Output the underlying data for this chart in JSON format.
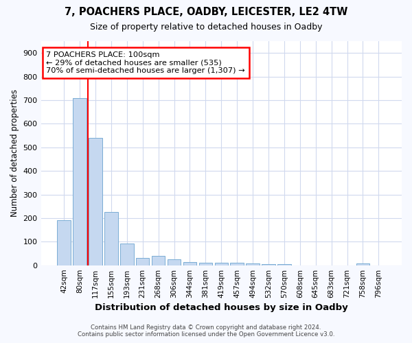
{
  "title": "7, POACHERS PLACE, OADBY, LEICESTER, LE2 4TW",
  "subtitle": "Size of property relative to detached houses in Oadby",
  "xlabel": "Distribution of detached houses by size in Oadby",
  "ylabel": "Number of detached properties",
  "categories": [
    "42sqm",
    "80sqm",
    "117sqm",
    "155sqm",
    "193sqm",
    "231sqm",
    "268sqm",
    "306sqm",
    "344sqm",
    "381sqm",
    "419sqm",
    "457sqm",
    "494sqm",
    "532sqm",
    "570sqm",
    "608sqm",
    "645sqm",
    "683sqm",
    "721sqm",
    "758sqm",
    "796sqm"
  ],
  "values": [
    190,
    708,
    540,
    225,
    92,
    30,
    40,
    25,
    15,
    12,
    12,
    10,
    8,
    6,
    4,
    0,
    0,
    0,
    0,
    8,
    0
  ],
  "bar_color": "#c5d8f0",
  "bar_edge_color": "#7aadd4",
  "red_line_x": 1.5,
  "annotation_text_line1": "7 POACHERS PLACE: 100sqm",
  "annotation_text_line2": "← 29% of detached houses are smaller (535)",
  "annotation_text_line3": "70% of semi-detached houses are larger (1,307) →",
  "ylim": [
    0,
    950
  ],
  "yticks": [
    0,
    100,
    200,
    300,
    400,
    500,
    600,
    700,
    800,
    900
  ],
  "footer_line1": "Contains HM Land Registry data © Crown copyright and database right 2024.",
  "footer_line2": "Contains public sector information licensed under the Open Government Licence v3.0.",
  "bg_color": "#f7f9ff",
  "plot_bg_color": "#ffffff",
  "grid_color": "#d0d9ee"
}
